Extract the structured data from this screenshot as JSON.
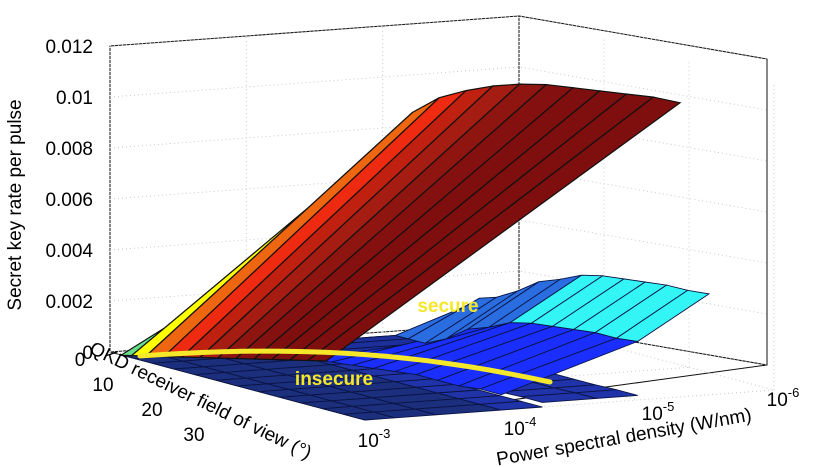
{
  "chart_data": {
    "type": "surface",
    "zlabel": "Secret key rate per pulse",
    "xlabel": "QKD receiver field of view (°)",
    "ylabel": "Power spectral density (W/nm)",
    "z_ticks": [
      "0",
      "0.002",
      "0.004",
      "0.006",
      "0.008",
      "0.01",
      "0.012"
    ],
    "x_ticks": [
      "0",
      "10",
      "20",
      "30"
    ],
    "y_ticks": [
      {
        "base": "10",
        "exp": "-3"
      },
      {
        "base": "10",
        "exp": "-4"
      },
      {
        "base": "10",
        "exp": "-5"
      },
      {
        "base": "10",
        "exp": "-6"
      }
    ],
    "zlim": [
      0,
      0.012
    ],
    "xlim": [
      0,
      30
    ],
    "y_scale": "log",
    "ylim": [
      0.001,
      1e-06
    ],
    "grid": true,
    "annotations": [
      {
        "text": "secure"
      },
      {
        "text": "insecure"
      }
    ],
    "series": [
      {
        "psd_w_per_nm": 1e-06,
        "fov_deg": [
          1.5,
          3,
          5,
          7.5,
          10,
          12.5,
          15,
          17.5,
          20,
          22.5,
          25,
          27.5,
          30
        ],
        "key_rate": [
          0.0053,
          0.0077,
          0.0089,
          0.0097,
          0.0102,
          0.0106,
          0.0109,
          0.0111,
          0.0112,
          0.0113,
          0.0114,
          0.0115,
          0.0115
        ]
      },
      {
        "psd_w_per_nm": 1e-05,
        "fov_deg": [
          1.5,
          3,
          5,
          7.5,
          10,
          12.5,
          15,
          17.5,
          20,
          22.5,
          25,
          27.5,
          30
        ],
        "key_rate": [
          0,
          0,
          0,
          0.0004,
          0.001,
          0.0013,
          0.0017,
          0.0019,
          0.002,
          0.0021,
          0.0022,
          0.0022,
          0.0023
        ]
      },
      {
        "psd_w_per_nm": 0.0001,
        "fov_deg": [
          1.5,
          3,
          5,
          7.5,
          10,
          12.5,
          15,
          17.5,
          20,
          22.5,
          25,
          27.5,
          30
        ],
        "key_rate": [
          0,
          0,
          0,
          0,
          0.0001,
          0.0002,
          0.0003,
          0.0004,
          0.0005,
          0.0005,
          0.0005,
          0.0006,
          0.0006
        ]
      },
      {
        "psd_w_per_nm": 0.001,
        "fov_deg": [
          1.5,
          3,
          5,
          7.5,
          10,
          12.5,
          15,
          17.5,
          20,
          22.5,
          25,
          27.5,
          30
        ],
        "key_rate": [
          0,
          0,
          0,
          0,
          0,
          0,
          0,
          0,
          0,
          0,
          0,
          0,
          0
        ]
      }
    ]
  },
  "colors": {
    "panel_fill": [
      "#66dd88",
      "#ffff00",
      "#ee6610",
      "#ee2a10",
      "#c02010",
      "#a51d12",
      "#8f1510",
      "#851010",
      "#7f0e0e",
      "#7f0e0e",
      "#7f0e0e",
      "#7f0e0e"
    ],
    "cyan": "#33f5f5",
    "blue": "#1a2fff",
    "dark_blue": "#1f3595",
    "floor_navy": "#1c2f7d",
    "boundary_yellow": "#f5e72a"
  }
}
